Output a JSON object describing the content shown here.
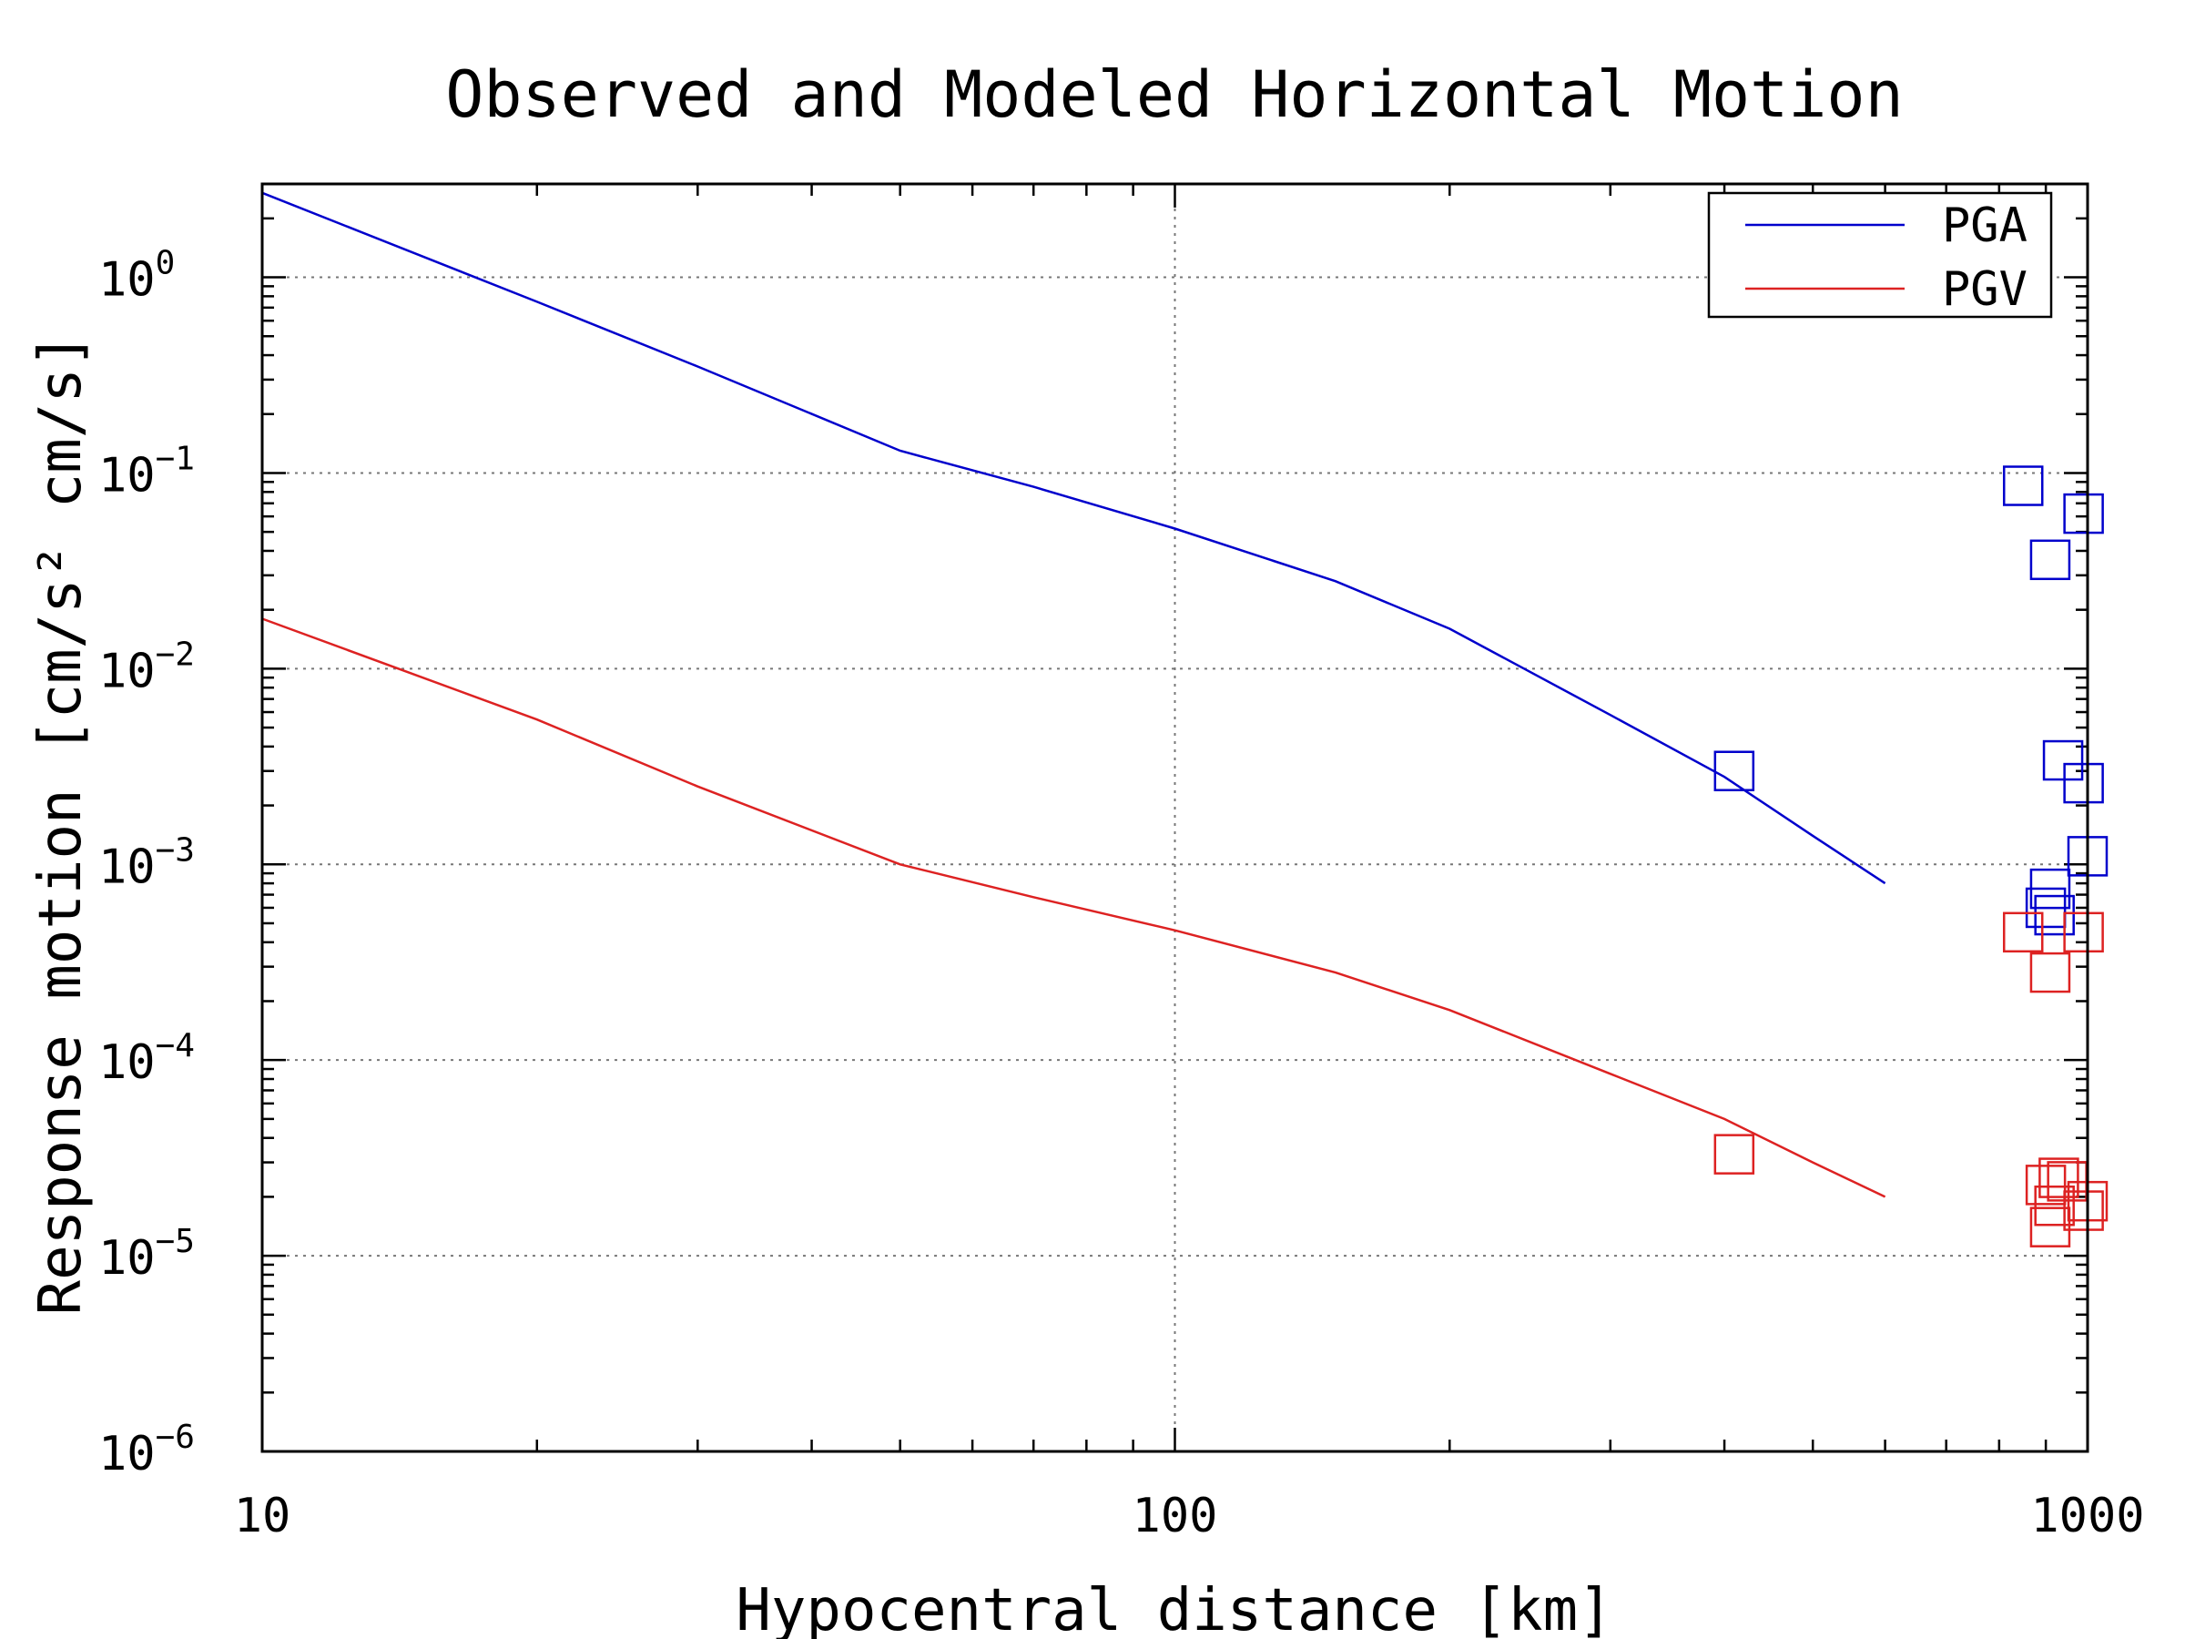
{
  "chart_data": {
    "type": "line",
    "title": "Observed and Modeled Horizontal Motion",
    "xlabel": "Hypocentral distance [km]",
    "ylabel": "Response motion  [cm/s²  cm/s]",
    "x_scale": "log",
    "y_scale": "log",
    "xlim": [
      10,
      1000
    ],
    "ylim": [
      1e-06,
      3
    ],
    "x_ticks": [
      {
        "value": 10,
        "label": "10"
      },
      {
        "value": 100,
        "label": "100"
      },
      {
        "value": 1000,
        "label": "1000"
      }
    ],
    "y_ticks": [
      {
        "value": 1,
        "base": "10",
        "exp": "0"
      },
      {
        "value": 0.1,
        "base": "10",
        "exp": "−1"
      },
      {
        "value": 0.01,
        "base": "10",
        "exp": "−2"
      },
      {
        "value": 0.001,
        "base": "10",
        "exp": "−3"
      },
      {
        "value": 0.0001,
        "base": "10",
        "exp": "−4"
      },
      {
        "value": 1e-05,
        "base": "10",
        "exp": "−5"
      },
      {
        "value": 1e-06,
        "base": "10",
        "exp": "−6"
      }
    ],
    "grid": true,
    "legend_position": "top-right",
    "series": [
      {
        "name": "PGA",
        "color": "#0000cc",
        "x": [
          10,
          20,
          30,
          50,
          70,
          100,
          150,
          200,
          300,
          400,
          500,
          600
        ],
        "y": [
          2.7,
          0.75,
          0.35,
          0.13,
          0.085,
          0.052,
          0.028,
          0.016,
          0.0058,
          0.0028,
          0.0014,
          0.0008
        ]
      },
      {
        "name": "PGV",
        "color": "#dd2222",
        "x": [
          10,
          20,
          30,
          50,
          70,
          100,
          150,
          200,
          300,
          400,
          500,
          600
        ],
        "y": [
          0.018,
          0.0055,
          0.0025,
          0.001,
          0.00068,
          0.00046,
          0.00028,
          0.00018,
          8.5e-05,
          5e-05,
          3e-05,
          2e-05
        ]
      }
    ],
    "observations": [
      {
        "series": "PGA",
        "color": "#0000cc",
        "points": [
          [
            410,
            0.003
          ],
          [
            850,
            0.086
          ],
          [
            910,
            0.036
          ],
          [
            990,
            0.062
          ],
          [
            940,
            0.0034
          ],
          [
            990,
            0.0026
          ],
          [
            1000,
            0.0011
          ],
          [
            910,
            0.00075
          ],
          [
            900,
            0.0006
          ],
          [
            920,
            0.00055
          ]
        ]
      },
      {
        "series": "PGV",
        "color": "#dd2222",
        "points": [
          [
            410,
            3.3e-05
          ],
          [
            850,
            0.00045
          ],
          [
            910,
            0.00028
          ],
          [
            990,
            0.00045
          ],
          [
            900,
            2.3e-05
          ],
          [
            930,
            2.5e-05
          ],
          [
            950,
            2.4e-05
          ],
          [
            910,
            1.4e-05
          ],
          [
            920,
            1.8e-05
          ],
          [
            1000,
            1.9e-05
          ],
          [
            990,
            1.7e-05
          ]
        ]
      }
    ]
  }
}
